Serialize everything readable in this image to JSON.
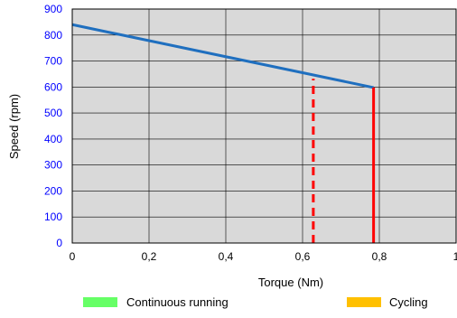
{
  "chart_data": {
    "type": "line",
    "xlabel": "Torque (Nm)",
    "ylabel": "Speed (rpm)",
    "xlim": [
      0,
      1
    ],
    "ylim": [
      0,
      900
    ],
    "x_ticks": [
      0,
      0.2,
      0.4,
      0.6,
      0.8,
      1
    ],
    "x_tick_labels": [
      "0",
      "0,2",
      "0,4",
      "0,6",
      "0,8",
      "1"
    ],
    "y_ticks": [
      0,
      100,
      200,
      300,
      400,
      500,
      600,
      700,
      800,
      900
    ],
    "y_tick_labels": [
      "0",
      "100",
      "200",
      "300",
      "400",
      "500",
      "600",
      "700",
      "800",
      "900"
    ],
    "grid": true,
    "plot_background": "#d9d9d9",
    "series": [
      {
        "style": "solid",
        "color": "#1f6fbf",
        "points": [
          [
            0,
            840
          ],
          [
            0.785,
            598
          ]
        ]
      },
      {
        "style": "solid",
        "color": "#ff0000",
        "points": [
          [
            0.785,
            0
          ],
          [
            0.785,
            598
          ]
        ]
      },
      {
        "style": "dashed",
        "color": "#ff0000",
        "points": [
          [
            0.628,
            0
          ],
          [
            0.628,
            632
          ]
        ]
      }
    ],
    "legend": {
      "placement": "bottom",
      "items": [
        {
          "label": "Continuous running",
          "color": "#66ff66"
        },
        {
          "label": "Cycling",
          "color": "#ffc000"
        }
      ]
    },
    "colors": {
      "axis_text": "#0000ff",
      "x_tick_text": "#000000",
      "grid": "#000000"
    }
  }
}
